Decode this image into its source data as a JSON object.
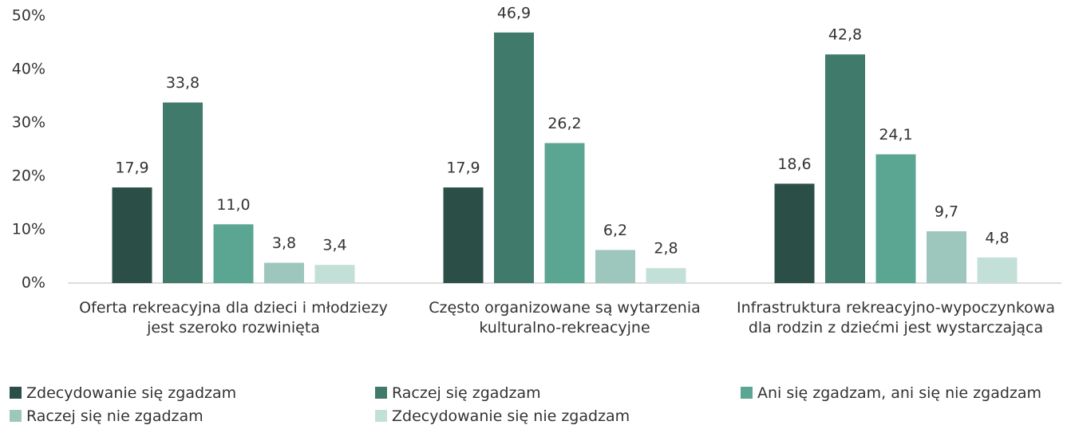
{
  "chart_data": {
    "type": "bar",
    "categories": [
      "Oferta rekreacyjna dla dzieci i młodziezy jest szeroko rozwinięta",
      "Często organizowane są wytarzenia kulturalno-rekreacyjne",
      "Infrastruktura rekreacyjno-wypoczynkowa dla rodzin z dziećmi jest wystarczająca"
    ],
    "series": [
      {
        "name": "Zdecydowanie się zgadzam",
        "color": "#2b4f47",
        "values": [
          17.9,
          17.9,
          18.6
        ],
        "value_labels": [
          "17,9",
          "17,9",
          "18,6"
        ]
      },
      {
        "name": "Raczej się zgadzam",
        "color": "#407a6a",
        "values": [
          33.8,
          46.9,
          42.8
        ],
        "value_labels": [
          "33,8",
          "46,9",
          "42,8"
        ]
      },
      {
        "name": "Ani się zgadzam, ani się nie zgadzam",
        "color": "#5ba593",
        "values": [
          11.0,
          26.2,
          24.1
        ],
        "value_labels": [
          "11,0",
          "26,2",
          "24,1"
        ]
      },
      {
        "name": "Raczej się nie zgadzam",
        "color": "#9dc7bc",
        "values": [
          3.8,
          6.2,
          9.7
        ],
        "value_labels": [
          "3,8",
          "6,2",
          "9,7"
        ]
      },
      {
        "name": "Zdecydowanie się nie zgadzam",
        "color": "#c3e0d8",
        "values": [
          3.4,
          2.8,
          4.8
        ],
        "value_labels": [
          "3,4",
          "2,8",
          "4,8"
        ]
      }
    ],
    "ylim": [
      0,
      50
    ],
    "yticks": [
      {
        "value": 0,
        "label": "0%"
      },
      {
        "value": 10,
        "label": "10%"
      },
      {
        "value": 20,
        "label": "20%"
      },
      {
        "value": 30,
        "label": "30%"
      },
      {
        "value": 40,
        "label": "40%"
      },
      {
        "value": 50,
        "label": "50%"
      }
    ],
    "grid": false,
    "legend": "bottom"
  }
}
